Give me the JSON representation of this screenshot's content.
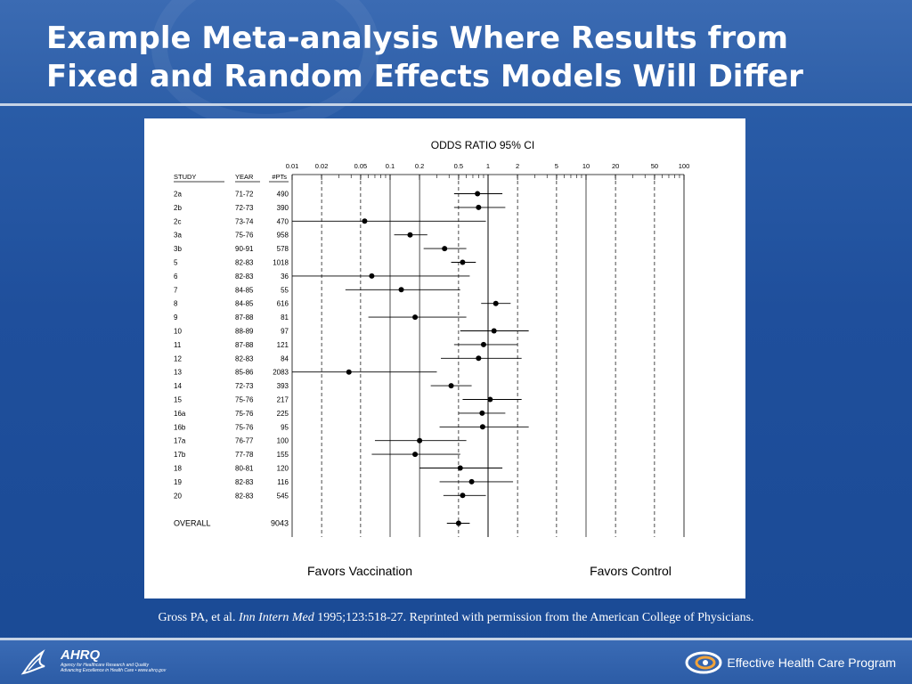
{
  "slide": {
    "title_line1": "Example Meta-analysis Where Results from",
    "title_line2": "Fixed and Random Effects Models Will Differ",
    "citation_prefix": "Gross PA, et al. ",
    "citation_journal": "Inn Intern Med",
    "citation_suffix": " 1995;123:518-27. Reprinted with permission from the American College of Physicians."
  },
  "footer": {
    "ahrq_name": "AHRQ",
    "ahrq_line1": "Agency for Healthcare Research and Quality",
    "ahrq_line2": "Advancing Excellence in Health Care • www.ahrq.gov",
    "program": "Effective Health Care Program",
    "hhs_icon": "hhs-eagle-icon",
    "program_icon": "ehc-swirl-icon"
  },
  "chart_data": {
    "type": "forest",
    "title": "ODDS RATIO  95% CI",
    "columns": [
      "STUDY",
      "YEAR",
      "#PTs"
    ],
    "x_scale": "log",
    "xlim": [
      0.01,
      100
    ],
    "x_ticks": [
      0.01,
      0.02,
      0.05,
      0.1,
      0.2,
      0.5,
      1,
      2,
      5,
      10,
      20,
      50,
      100
    ],
    "x_tick_labels": [
      "0.01",
      "0.02",
      "0.05",
      "0.1",
      "0.2",
      "0.5",
      "1",
      "2",
      "5",
      "10",
      "20",
      "50",
      "100"
    ],
    "dashed_ticks": [
      0.02,
      0.05,
      0.5,
      2,
      5,
      20,
      50
    ],
    "studies": [
      {
        "study": "2a",
        "year": "71-72",
        "pts": "490",
        "or": 0.78,
        "lo": 0.45,
        "hi": 1.4
      },
      {
        "study": "2b",
        "year": "72-73",
        "pts": "390",
        "or": 0.8,
        "lo": 0.45,
        "hi": 1.5
      },
      {
        "study": "2c",
        "year": "73-74",
        "pts": "470",
        "or": 0.055,
        "lo": 0.01,
        "hi": 0.95
      },
      {
        "study": "3a",
        "year": "75-76",
        "pts": "958",
        "or": 0.16,
        "lo": 0.11,
        "hi": 0.24
      },
      {
        "study": "3b",
        "year": "90-91",
        "pts": "578",
        "or": 0.36,
        "lo": 0.22,
        "hi": 0.6
      },
      {
        "study": "5",
        "year": "82-83",
        "pts": "1018",
        "or": 0.55,
        "lo": 0.42,
        "hi": 0.75
      },
      {
        "study": "6",
        "year": "82-83",
        "pts": "36",
        "or": 0.065,
        "lo": 0.01,
        "hi": 0.65
      },
      {
        "study": "7",
        "year": "84-85",
        "pts": "55",
        "or": 0.13,
        "lo": 0.035,
        "hi": 0.52
      },
      {
        "study": "8",
        "year": "84-85",
        "pts": "616",
        "or": 1.2,
        "lo": 0.85,
        "hi": 1.7
      },
      {
        "study": "9",
        "year": "87-88",
        "pts": "81",
        "or": 0.18,
        "lo": 0.06,
        "hi": 0.6
      },
      {
        "study": "10",
        "year": "88-89",
        "pts": "97",
        "or": 1.15,
        "lo": 0.52,
        "hi": 2.6
      },
      {
        "study": "11",
        "year": "87-88",
        "pts": "121",
        "or": 0.9,
        "lo": 0.45,
        "hi": 2.0
      },
      {
        "study": "12",
        "year": "82-83",
        "pts": "84",
        "or": 0.8,
        "lo": 0.33,
        "hi": 2.2
      },
      {
        "study": "13",
        "year": "85-86",
        "pts": "2083",
        "or": 0.038,
        "lo": 0.01,
        "hi": 0.3
      },
      {
        "study": "14",
        "year": "72-73",
        "pts": "393",
        "or": 0.42,
        "lo": 0.26,
        "hi": 0.68
      },
      {
        "study": "15",
        "year": "75-76",
        "pts": "217",
        "or": 1.05,
        "lo": 0.55,
        "hi": 2.2
      },
      {
        "study": "16a",
        "year": "75-76",
        "pts": "225",
        "or": 0.87,
        "lo": 0.5,
        "hi": 1.5
      },
      {
        "study": "16b",
        "year": "75-76",
        "pts": "95",
        "or": 0.88,
        "lo": 0.32,
        "hi": 2.6
      },
      {
        "study": "17a",
        "year": "76-77",
        "pts": "100",
        "or": 0.2,
        "lo": 0.07,
        "hi": 0.6
      },
      {
        "study": "17b",
        "year": "77-78",
        "pts": "155",
        "or": 0.18,
        "lo": 0.065,
        "hi": 0.52
      },
      {
        "study": "18",
        "year": "80-81",
        "pts": "120",
        "or": 0.52,
        "lo": 0.2,
        "hi": 1.4
      },
      {
        "study": "19",
        "year": "82-83",
        "pts": "116",
        "or": 0.68,
        "lo": 0.32,
        "hi": 1.8
      },
      {
        "study": "20",
        "year": "82-83",
        "pts": "545",
        "or": 0.55,
        "lo": 0.35,
        "hi": 0.95
      }
    ],
    "overall": {
      "label": "OVERALL",
      "pts": "9043",
      "or": 0.5,
      "lo": 0.38,
      "hi": 0.65
    },
    "favors_left": "Favors Vaccination",
    "favors_right": "Favors Control",
    "grid": true
  }
}
